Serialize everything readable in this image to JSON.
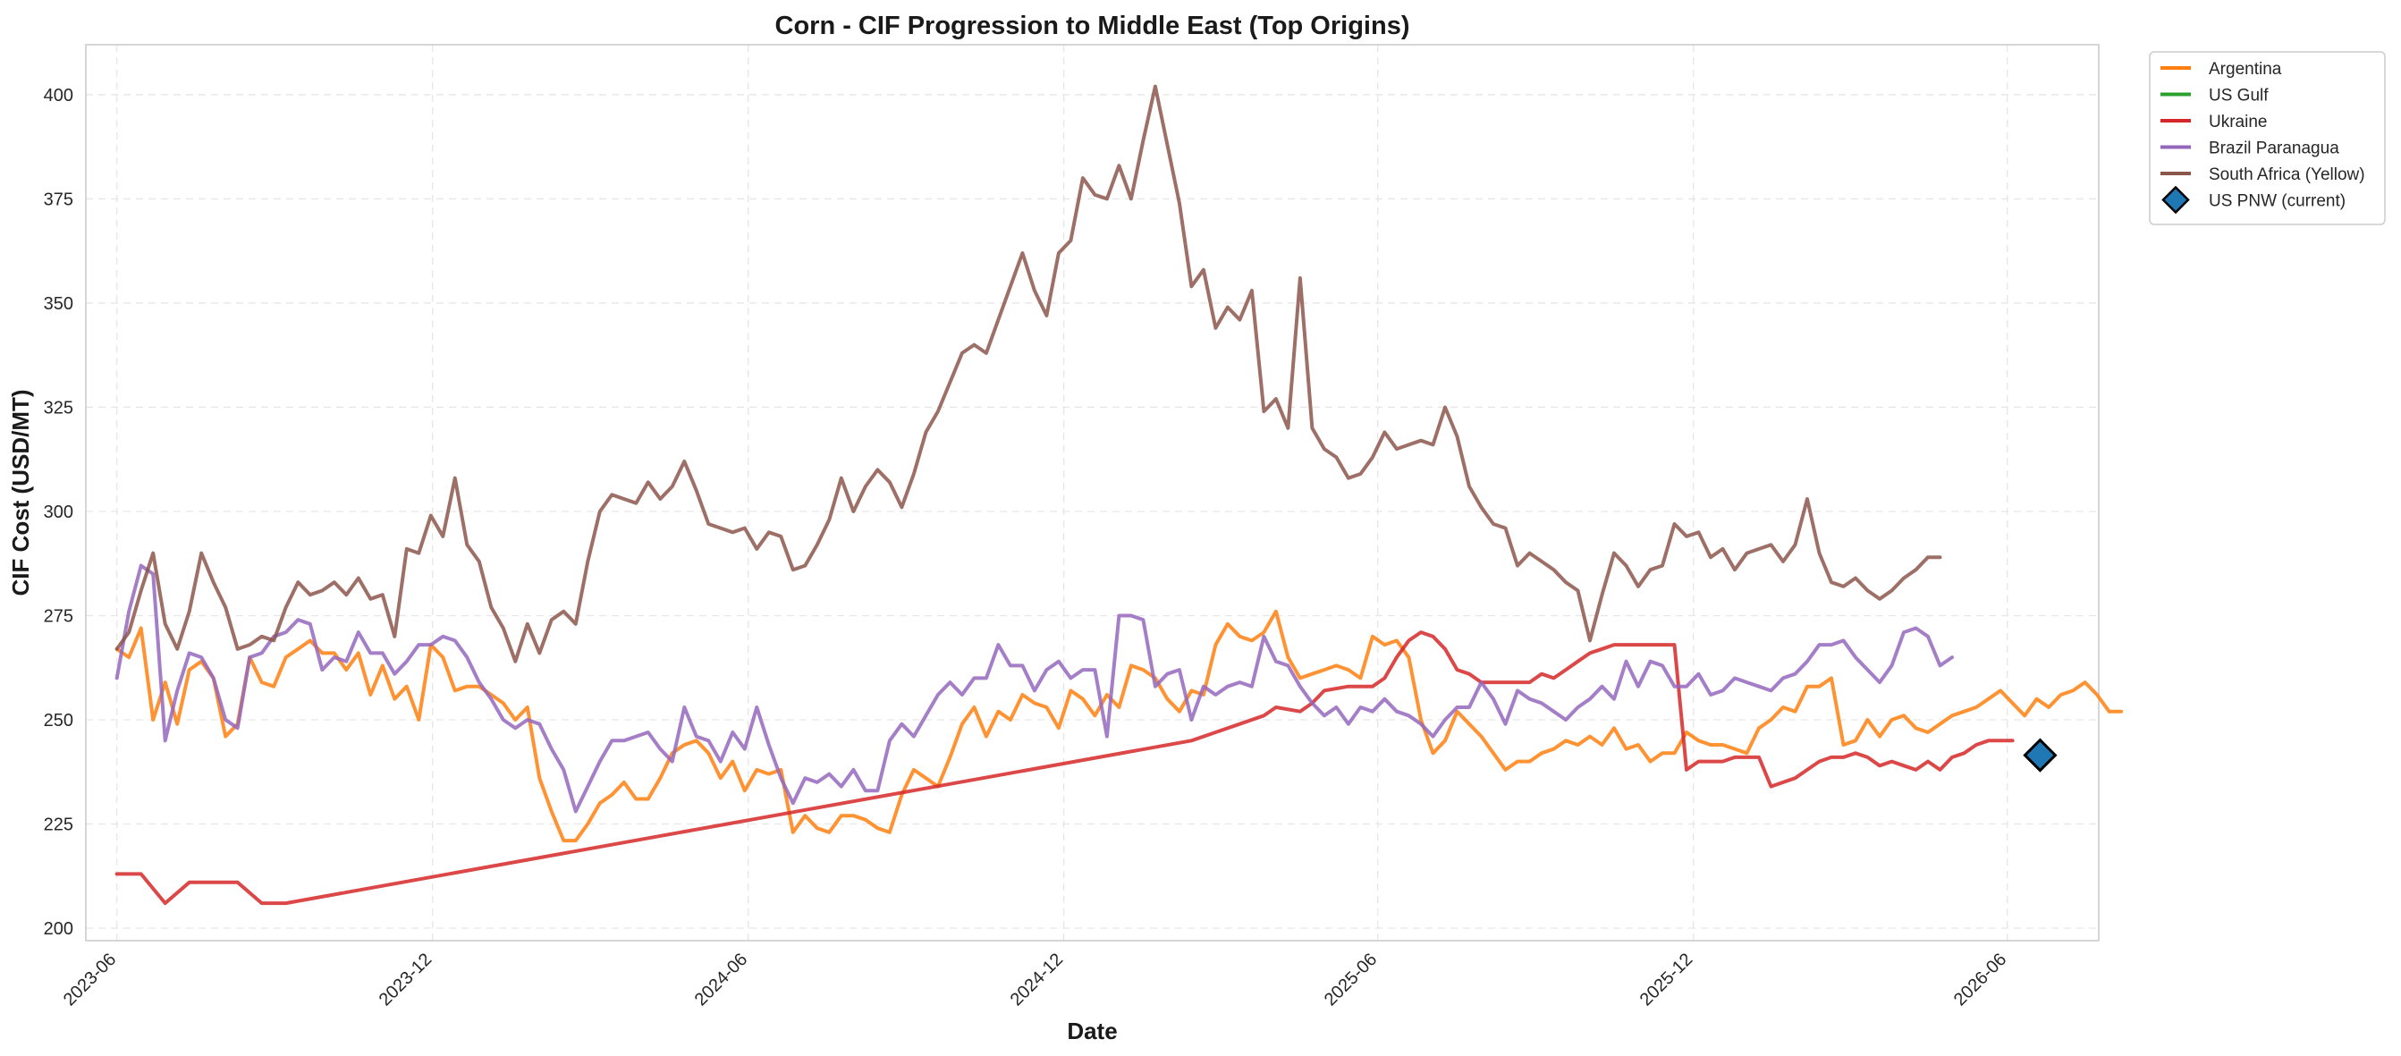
{
  "chart_data": {
    "type": "line",
    "title": "Corn - CIF Progression to Middle East (Top Origins)",
    "xlabel": "Date",
    "ylabel": "CIF Cost (USD/MT)",
    "xlim": [
      "2023-05-14",
      "2026-07-24"
    ],
    "ylim": [
      197,
      412
    ],
    "grid": true,
    "legend_position": "outside-top-right",
    "x_ticks": [
      "2023-06",
      "2023-12",
      "2024-06",
      "2024-12",
      "2025-06",
      "2025-12",
      "2026-06"
    ],
    "y_ticks": [
      200,
      225,
      250,
      275,
      300,
      325,
      350,
      375,
      400
    ],
    "series": [
      {
        "name": "Argentina",
        "color": "#ff7f0e",
        "points": [
          [
            "2023-06-01",
            267
          ],
          [
            "2023-06-08",
            265
          ],
          [
            "2023-06-22",
            272
          ],
          [
            "2023-07-06",
            250
          ],
          [
            "2023-07-13",
            259
          ],
          [
            "2023-07-27",
            249
          ],
          [
            "2023-08-10",
            262
          ],
          [
            "2023-08-24",
            264
          ],
          [
            "2023-09-07",
            260
          ],
          [
            "2023-09-21",
            246
          ],
          [
            "2023-10-05",
            249
          ],
          [
            "2023-10-19",
            265
          ],
          [
            "2023-10-26",
            259
          ],
          [
            "2023-11-09",
            258
          ],
          [
            "2023-11-23",
            265
          ],
          [
            "2023-12-07",
            267
          ],
          [
            "2023-12-21",
            269
          ],
          [
            "2024-01-04",
            265
          ],
          [
            "2024-01-11",
            266
          ],
          [
            "2024-01-25",
            262
          ],
          [
            "2024-02-08",
            266
          ],
          [
            "2024-02-22",
            256
          ],
          [
            "2024-03-07",
            263
          ],
          [
            "2024-03-21",
            255
          ],
          [
            "2024-04-04",
            258
          ],
          [
            "2024-04-18",
            250
          ],
          [
            "2024-05-02",
            268
          ],
          [
            "2024-05-16",
            265
          ],
          [
            "2024-05-30",
            257
          ],
          [
            "2024-06-13",
            258
          ],
          [
            "2024-06-27",
            258
          ],
          [
            "2024-07-11",
            256
          ],
          [
            "2024-07-25",
            254
          ],
          [
            "2024-08-08",
            250
          ],
          [
            "2024-08-22",
            253
          ],
          [
            "2024-09-05",
            236
          ],
          [
            "2024-09-19",
            228
          ],
          [
            "2024-10-03",
            221
          ],
          [
            "2024-10-17",
            221
          ],
          [
            "2024-10-31",
            225
          ],
          [
            "2024-11-14",
            230
          ],
          [
            "2024-11-28",
            232
          ],
          [
            "2024-12-12",
            235
          ],
          [
            "2024-12-26",
            231
          ],
          [
            "2025-01-09",
            231
          ],
          [
            "2025-01-23",
            236
          ],
          [
            "2025-02-06",
            242
          ],
          [
            "2025-02-20",
            244
          ],
          [
            "2025-03-06",
            245
          ],
          [
            "2025-03-20",
            242
          ],
          [
            "2025-04-03",
            236
          ],
          [
            "2025-04-17",
            240
          ],
          [
            "2025-05-01",
            233
          ],
          [
            "2025-05-15",
            238
          ],
          [
            "2025-05-29",
            237
          ],
          [
            "2025-06-12",
            238
          ],
          [
            "2025-06-26",
            223
          ],
          [
            "2025-07-10",
            227
          ],
          [
            "2025-07-24",
            224
          ],
          [
            "2025-08-07",
            223
          ],
          [
            "2025-08-21",
            227
          ],
          [
            "2025-09-04",
            227
          ],
          [
            "2025-09-18",
            226
          ],
          [
            "2025-10-02",
            224
          ],
          [
            "2025-10-16",
            223
          ],
          [
            "2025-10-30",
            232
          ],
          [
            "2025-11-13",
            238
          ],
          [
            "2025-11-27",
            236
          ],
          [
            "2025-12-11",
            234
          ],
          [
            "2025-12-25",
            241
          ],
          [
            "2026-01-08",
            249
          ],
          [
            "2026-01-22",
            253
          ],
          [
            "2026-02-05",
            246
          ],
          [
            "2026-02-19",
            252
          ],
          [
            "2026-03-05",
            250
          ],
          [
            "2026-03-19",
            256
          ],
          [
            "2026-04-02",
            254
          ],
          [
            "2026-04-16",
            253
          ],
          [
            "2026-04-30",
            248
          ]
        ],
        "_note": "ignore"
      },
      {
        "name": "US Gulf",
        "color": "#2ca02c",
        "points": []
      },
      {
        "name": "Ukraine",
        "color": "#d62728",
        "points": []
      },
      {
        "name": "Brazil Paranagua",
        "color": "#9467bd",
        "points": []
      },
      {
        "name": "South Africa (Yellow)",
        "color": "#8c564b",
        "points": []
      }
    ],
    "markers": [
      {
        "name": "US PNW (current)",
        "color": "#1f77b4",
        "shape": "diamond",
        "x": "2026-06-20",
        "y": 241.5
      }
    ]
  }
}
